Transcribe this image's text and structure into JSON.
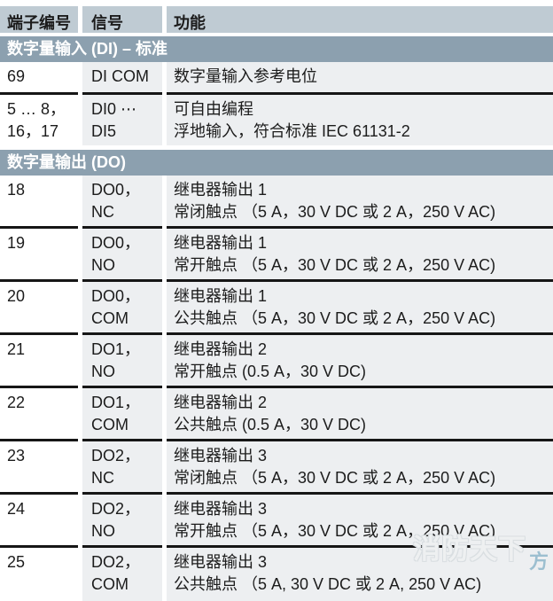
{
  "table": {
    "columns": {
      "terminal": "端子编号",
      "signal": "信号",
      "function": "功能"
    },
    "sections": [
      {
        "title": "数字量输入 (DI) – 标准",
        "rows": [
          {
            "terminal": "69",
            "signal": "DI COM",
            "function": "数字量输入参考电位"
          },
          {
            "terminal": "5 … 8，\n16，17",
            "signal": "DI0 ⋯ DI5",
            "function": "可自由编程\n浮地输入，符合标准 IEC 61131-2"
          }
        ]
      },
      {
        "title": "数字量输出 (DO)",
        "rows": [
          {
            "terminal": "18",
            "signal": "DO0，NC",
            "function": "继电器输出 1\n常闭触点 （5 A，30 V DC 或 2 A，250 V AC)"
          },
          {
            "terminal": "19",
            "signal": "DO0，NO",
            "function": "继电器输出 1\n常开触点 （5 A，30 V DC 或 2 A，250 V AC)"
          },
          {
            "terminal": "20",
            "signal": "DO0，COM",
            "function": "继电器输出 1\n公共触点 （5 A，30 V DC 或 2 A，250 V AC)"
          },
          {
            "terminal": "21",
            "signal": "DO1，NO",
            "function": "继电器输出 2\n常开触点 (0.5 A，30 V DC)"
          },
          {
            "terminal": "22",
            "signal": "DO1，COM",
            "function": "继电器输出 2\n公共触点 (0.5 A，30 V DC)"
          },
          {
            "terminal": "23",
            "signal": "DO2，NC",
            "function": "继电器输出 3\n常闭触点 （5 A，30 V DC 或 2 A，250 V AC)"
          },
          {
            "terminal": "24",
            "signal": "DO2，NO",
            "function": "继电器输出 3\n常开触点 （5 A，30 V DC 或 2 A，250 V AC)"
          },
          {
            "terminal": "25",
            "signal": "DO2，COM",
            "function": "继电器输出 3\n公共触点 （5 A, 30 V DC 或 2 A, 250 V AC)"
          }
        ]
      }
    ]
  },
  "watermark": {
    "main": "消防天下",
    "partial": "方"
  },
  "colors": {
    "header_bg": "#BFCBD3",
    "section_bg": "#8CA0AF",
    "cell_bg": "#EDEFF1",
    "row_line": "#161616",
    "watermark_blue": "#8DB6CA"
  }
}
